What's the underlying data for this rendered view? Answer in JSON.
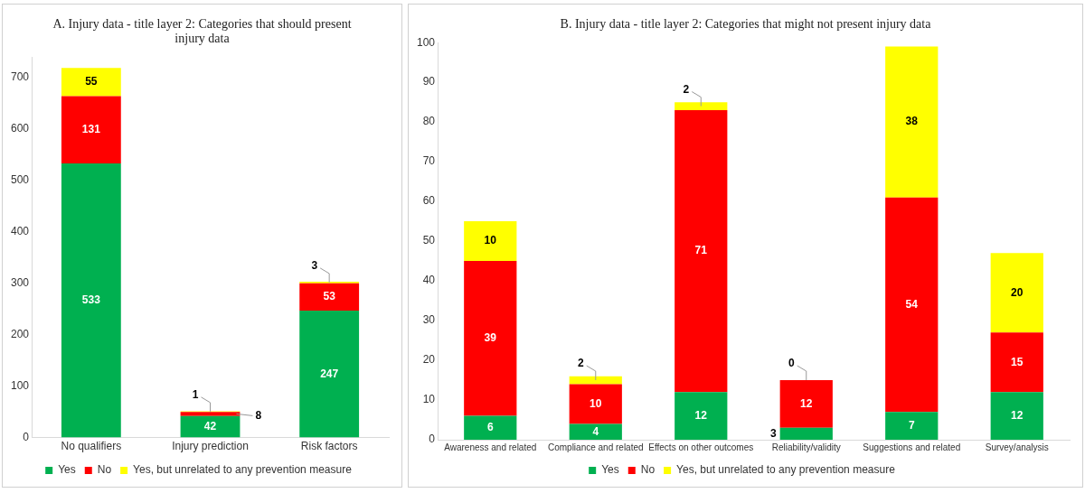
{
  "chart_data": [
    {
      "type": "bar",
      "title": "A. Injury data - title layer 2: Categories that should present injury data",
      "categories": [
        "No qualifiers",
        "Injury prediction",
        "Risk factors"
      ],
      "stacked": true,
      "ylim": [
        0,
        740
      ],
      "yticks": [
        0,
        100,
        200,
        300,
        400,
        500,
        600,
        700
      ],
      "grid": false,
      "legend": "bottom",
      "data_labels": true,
      "series": [
        {
          "name": "Yes",
          "color": "#00b050",
          "values": [
            533,
            42,
            247
          ]
        },
        {
          "name": "No",
          "color": "#ff0000",
          "values": [
            131,
            8,
            53
          ]
        },
        {
          "name": "Yes, but unrelated to any prevention measure",
          "color": "#ffff00",
          "values": [
            55,
            1,
            3
          ]
        }
      ]
    },
    {
      "type": "bar",
      "title": "B. Injury data - title layer 2: Categories that might not present injury data",
      "categories": [
        "Awareness and related",
        "Compliance and related",
        "Effects on other outcomes",
        "Reliability/validity",
        "Suggestions and related",
        "Survey/analysis"
      ],
      "stacked": true,
      "ylim": [
        0,
        100
      ],
      "yticks": [
        0,
        10,
        20,
        30,
        40,
        50,
        60,
        70,
        80,
        90,
        100
      ],
      "grid": false,
      "legend": "bottom",
      "data_labels": true,
      "series": [
        {
          "name": "Yes",
          "color": "#00b050",
          "values": [
            6,
            4,
            12,
            3,
            7,
            12
          ]
        },
        {
          "name": "No",
          "color": "#ff0000",
          "values": [
            39,
            10,
            71,
            12,
            54,
            15
          ]
        },
        {
          "name": "Yes, but unrelated to any prevention measure",
          "color": "#ffff00",
          "values": [
            10,
            2,
            2,
            0,
            38,
            20
          ]
        }
      ]
    }
  ]
}
